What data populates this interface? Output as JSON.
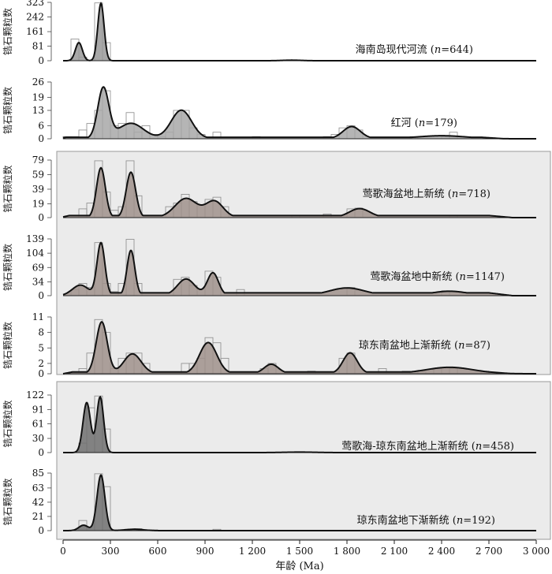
{
  "chart_data": {
    "type": "area",
    "xlabel": "年龄 (Ma)",
    "ylabel": "锆石颗粒数",
    "xlim": [
      0,
      3000
    ],
    "x_ticks": [
      0,
      300,
      600,
      900,
      1200,
      1500,
      1800,
      2100,
      2400,
      2700,
      3000
    ],
    "x_tick_labels": [
      "0",
      "300",
      "600",
      "900",
      "1 200",
      "1 500",
      "1 800",
      "2 100",
      "2 400",
      "2 700",
      "3 000"
    ],
    "bin_width_ma": 50,
    "groups": [
      "top-plain",
      "shaded-neogene",
      "shaded-oligocene"
    ],
    "panels": [
      {
        "label": "海南岛现代河流 (n=644)",
        "name": "海南岛现代河流",
        "n": "644",
        "group": "top-plain",
        "fill": "#999999",
        "y_ticks": [
          0,
          81,
          161,
          242,
          323
        ],
        "ylim": [
          0,
          323
        ],
        "histogram": [
          {
            "x": 75,
            "y": 120
          },
          {
            "x": 125,
            "y": 20
          },
          {
            "x": 225,
            "y": 320
          },
          {
            "x": 275,
            "y": 100
          }
        ],
        "peaks": [
          {
            "x": 100,
            "y": 100,
            "w": 22
          },
          {
            "x": 240,
            "y": 318,
            "w": 20
          },
          {
            "x": 1450,
            "y": 3,
            "w": 60
          }
        ]
      },
      {
        "label": "红河 (n=179)",
        "name": "红河",
        "n": "179",
        "group": "top-plain",
        "fill": "#a8a8a8",
        "y_ticks": [
          0,
          6,
          13,
          19,
          26
        ],
        "ylim": [
          0,
          26
        ],
        "histogram": [
          {
            "x": 25,
            "y": 1
          },
          {
            "x": 75,
            "y": 1
          },
          {
            "x": 125,
            "y": 4
          },
          {
            "x": 175,
            "y": 7
          },
          {
            "x": 225,
            "y": 13
          },
          {
            "x": 275,
            "y": 22
          },
          {
            "x": 325,
            "y": 6
          },
          {
            "x": 375,
            "y": 7
          },
          {
            "x": 425,
            "y": 12
          },
          {
            "x": 475,
            "y": 3
          },
          {
            "x": 525,
            "y": 6
          },
          {
            "x": 575,
            "y": 2
          },
          {
            "x": 625,
            "y": 1
          },
          {
            "x": 675,
            "y": 3
          },
          {
            "x": 725,
            "y": 13
          },
          {
            "x": 775,
            "y": 13
          },
          {
            "x": 825,
            "y": 5
          },
          {
            "x": 875,
            "y": 2
          },
          {
            "x": 975,
            "y": 3
          },
          {
            "x": 1225,
            "y": 1
          },
          {
            "x": 1675,
            "y": 1
          },
          {
            "x": 1725,
            "y": 2
          },
          {
            "x": 1775,
            "y": 5
          },
          {
            "x": 1825,
            "y": 6
          },
          {
            "x": 1875,
            "y": 4
          },
          {
            "x": 2225,
            "y": 1
          },
          {
            "x": 2425,
            "y": 1
          },
          {
            "x": 2475,
            "y": 3
          }
        ],
        "peaks": [
          {
            "x": 255,
            "y": 23,
            "w": 35
          },
          {
            "x": 430,
            "y": 7,
            "w": 80
          },
          {
            "x": 750,
            "y": 13,
            "w": 65
          },
          {
            "x": 1830,
            "y": 5.5,
            "w": 55
          },
          {
            "x": 2400,
            "y": 1.3,
            "w": 150
          }
        ],
        "base": {
          "y": 0.6,
          "x0": 20,
          "x1": 2650
        }
      },
      {
        "label": "莺歌海盆地上新统 (n=718)",
        "name": "莺歌海盆地上新统",
        "n": "718",
        "group": "shaded-neogene",
        "fill": "#a0928c",
        "y_ticks": [
          0,
          19,
          39,
          59,
          79
        ],
        "ylim": [
          0,
          79
        ],
        "histogram": [
          {
            "x": 125,
            "y": 12
          },
          {
            "x": 175,
            "y": 20
          },
          {
            "x": 225,
            "y": 78
          },
          {
            "x": 275,
            "y": 35
          },
          {
            "x": 325,
            "y": 10
          },
          {
            "x": 375,
            "y": 15
          },
          {
            "x": 425,
            "y": 78
          },
          {
            "x": 475,
            "y": 30
          },
          {
            "x": 675,
            "y": 15
          },
          {
            "x": 725,
            "y": 20
          },
          {
            "x": 775,
            "y": 32
          },
          {
            "x": 825,
            "y": 22
          },
          {
            "x": 875,
            "y": 18
          },
          {
            "x": 925,
            "y": 25
          },
          {
            "x": 975,
            "y": 28
          },
          {
            "x": 1025,
            "y": 15
          },
          {
            "x": 1475,
            "y": 3
          },
          {
            "x": 1675,
            "y": 5
          },
          {
            "x": 1825,
            "y": 12
          },
          {
            "x": 1875,
            "y": 13
          },
          {
            "x": 2475,
            "y": 3
          }
        ],
        "peaks": [
          {
            "x": 240,
            "y": 68,
            "w": 28
          },
          {
            "x": 430,
            "y": 62,
            "w": 30
          },
          {
            "x": 780,
            "y": 26,
            "w": 70
          },
          {
            "x": 960,
            "y": 22,
            "w": 55
          },
          {
            "x": 1880,
            "y": 12,
            "w": 65
          },
          {
            "x": 2450,
            "y": 2,
            "w": 120
          }
        ],
        "base": {
          "y": 2.5,
          "x0": 40,
          "x1": 2700
        }
      },
      {
        "label": "莺歌海盆地中新统 (n=1147)",
        "name": "莺歌海盆地中新统",
        "n": "1147",
        "group": "shaded-neogene",
        "fill": "#a0928c",
        "y_ticks": [
          0,
          34,
          69,
          104,
          139
        ],
        "ylim": [
          0,
          139
        ],
        "histogram": [
          {
            "x": 75,
            "y": 15
          },
          {
            "x": 125,
            "y": 30
          },
          {
            "x": 175,
            "y": 20
          },
          {
            "x": 225,
            "y": 130
          },
          {
            "x": 275,
            "y": 30
          },
          {
            "x": 325,
            "y": 10
          },
          {
            "x": 375,
            "y": 30
          },
          {
            "x": 425,
            "y": 138
          },
          {
            "x": 475,
            "y": 30
          },
          {
            "x": 725,
            "y": 40
          },
          {
            "x": 775,
            "y": 45
          },
          {
            "x": 825,
            "y": 25
          },
          {
            "x": 925,
            "y": 60
          },
          {
            "x": 975,
            "y": 45
          },
          {
            "x": 1125,
            "y": 15
          },
          {
            "x": 1825,
            "y": 20
          },
          {
            "x": 2425,
            "y": 12
          }
        ],
        "peaks": [
          {
            "x": 110,
            "y": 25,
            "w": 50
          },
          {
            "x": 240,
            "y": 128,
            "w": 25
          },
          {
            "x": 430,
            "y": 110,
            "w": 25
          },
          {
            "x": 780,
            "y": 40,
            "w": 55
          },
          {
            "x": 950,
            "y": 55,
            "w": 35
          },
          {
            "x": 1800,
            "y": 18,
            "w": 110
          },
          {
            "x": 2450,
            "y": 10,
            "w": 110
          }
        ],
        "base": {
          "y": 6,
          "x0": 40,
          "x1": 2700
        }
      },
      {
        "label": "琼东南盆地上渐新统 (n=87)",
        "name": "琼东南盆地上渐新统",
        "n": "87",
        "group": "shaded-neogene",
        "fill": "#a0928c",
        "y_ticks": [
          0,
          2,
          5,
          8,
          11
        ],
        "ylim": [
          0,
          11
        ],
        "histogram": [
          {
            "x": 125,
            "y": 1
          },
          {
            "x": 175,
            "y": 4
          },
          {
            "x": 225,
            "y": 10.5
          },
          {
            "x": 275,
            "y": 8
          },
          {
            "x": 325,
            "y": 1
          },
          {
            "x": 375,
            "y": 3
          },
          {
            "x": 425,
            "y": 4
          },
          {
            "x": 475,
            "y": 4
          },
          {
            "x": 525,
            "y": 2
          },
          {
            "x": 775,
            "y": 2
          },
          {
            "x": 825,
            "y": 2
          },
          {
            "x": 875,
            "y": 3
          },
          {
            "x": 925,
            "y": 7
          },
          {
            "x": 975,
            "y": 6
          },
          {
            "x": 1025,
            "y": 3
          },
          {
            "x": 1275,
            "y": 1
          },
          {
            "x": 1325,
            "y": 2
          },
          {
            "x": 1575,
            "y": 0.5
          },
          {
            "x": 1775,
            "y": 3
          },
          {
            "x": 1825,
            "y": 4
          },
          {
            "x": 2025,
            "y": 1
          },
          {
            "x": 2175,
            "y": 0.5
          },
          {
            "x": 2275,
            "y": 0.5
          },
          {
            "x": 2375,
            "y": 1
          },
          {
            "x": 2475,
            "y": 1
          },
          {
            "x": 2675,
            "y": 0.5
          }
        ],
        "peaks": [
          {
            "x": 245,
            "y": 10,
            "w": 35
          },
          {
            "x": 440,
            "y": 3.8,
            "w": 55
          },
          {
            "x": 920,
            "y": 6,
            "w": 55
          },
          {
            "x": 1320,
            "y": 1.8,
            "w": 45
          },
          {
            "x": 1820,
            "y": 4,
            "w": 45
          },
          {
            "x": 2450,
            "y": 1.2,
            "w": 150
          }
        ],
        "base": {
          "y": 0.3,
          "x0": 60,
          "x1": 2700
        }
      },
      {
        "label": "莺歌海-琼东南盆地上渐新统 (n=458)",
        "name": "莺歌海-琼东南盆地上渐新统",
        "n": "458",
        "group": "shaded-oligocene",
        "fill": "#707070",
        "y_ticks": [
          0,
          30,
          61,
          91,
          122
        ],
        "ylim": [
          0,
          122
        ],
        "histogram": [
          {
            "x": 125,
            "y": 20
          },
          {
            "x": 175,
            "y": 95
          },
          {
            "x": 225,
            "y": 120
          },
          {
            "x": 275,
            "y": 50
          }
        ],
        "peaks": [
          {
            "x": 150,
            "y": 106,
            "w": 24
          },
          {
            "x": 235,
            "y": 118,
            "w": 22
          },
          {
            "x": 1500,
            "y": 1,
            "w": 100
          }
        ]
      },
      {
        "label": "琼东南盆地下渐新统 (n=192)",
        "name": "琼东南盆地下渐新统",
        "n": "192",
        "group": "shaded-oligocene",
        "fill": "#707070",
        "y_ticks": [
          0,
          21,
          42,
          63,
          85
        ],
        "ylim": [
          0,
          85
        ],
        "histogram": [
          {
            "x": 125,
            "y": 15
          },
          {
            "x": 225,
            "y": 84
          },
          {
            "x": 275,
            "y": 65
          },
          {
            "x": 475,
            "y": 3
          },
          {
            "x": 575,
            "y": 1
          },
          {
            "x": 975,
            "y": 2
          }
        ],
        "peaks": [
          {
            "x": 240,
            "y": 82,
            "w": 25
          },
          {
            "x": 130,
            "y": 8,
            "w": 30
          },
          {
            "x": 450,
            "y": 2,
            "w": 60
          }
        ]
      }
    ]
  }
}
